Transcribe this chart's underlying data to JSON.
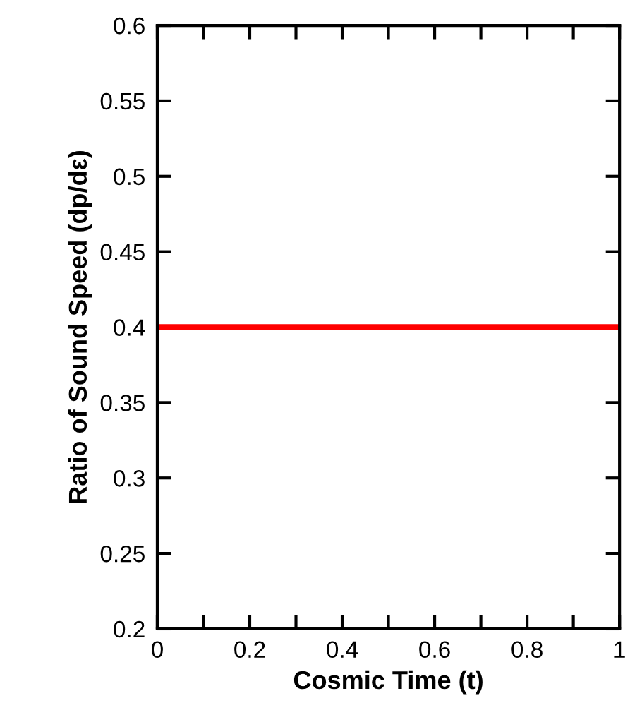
{
  "chart_data": {
    "type": "line",
    "xlabel": "Cosmic Time (t)",
    "ylabel": "Ratio of Sound Speed (dp/dε)",
    "x": [
      0,
      1
    ],
    "series": [
      {
        "color": "#ff0000",
        "values": [
          0.4,
          0.4
        ]
      }
    ],
    "xlim": [
      0,
      1
    ],
    "ylim": [
      0.2,
      0.6
    ],
    "xticks": [
      0,
      {
        "value": 0.1,
        "label": null
      },
      0.2,
      {
        "value": 0.3,
        "label": null
      },
      0.4,
      {
        "value": 0.5,
        "label": null
      },
      0.6,
      {
        "value": 0.7,
        "label": null
      },
      0.8,
      {
        "value": 0.9,
        "label": null
      },
      1
    ],
    "yticks": [
      0.2,
      0.25,
      0.3,
      0.35,
      0.4,
      0.45,
      0.5,
      0.55,
      0.6
    ],
    "grid": false,
    "legend": false,
    "marker": "none",
    "line_style": "solid"
  }
}
